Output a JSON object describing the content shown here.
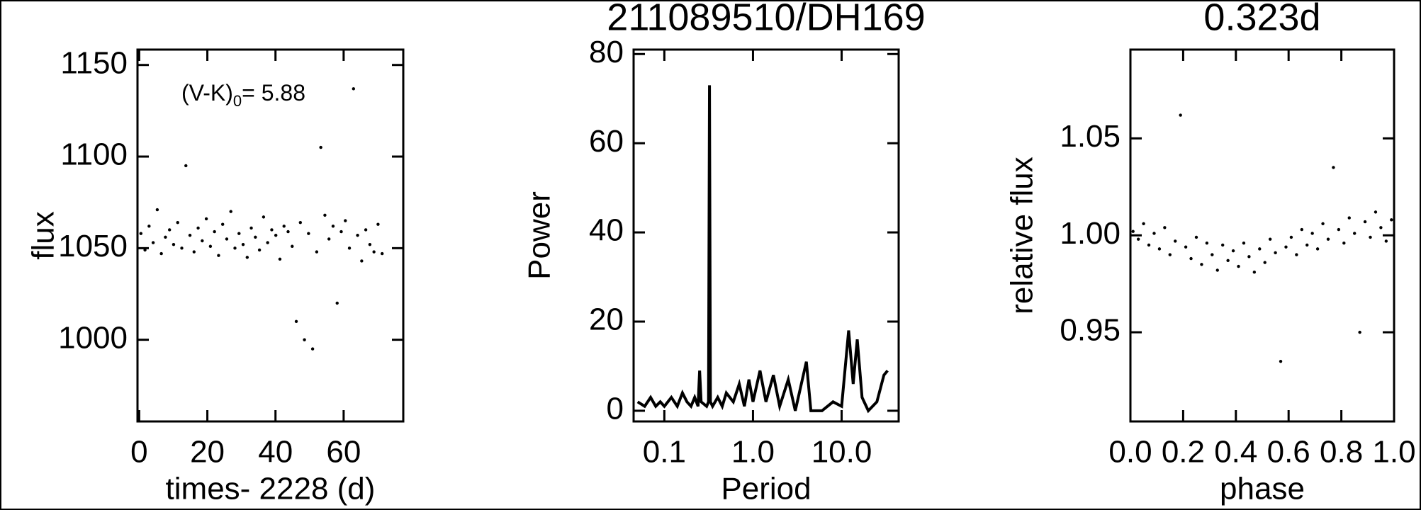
{
  "chart_data": [
    {
      "type": "scatter",
      "x_label": "times- 2228 (d)",
      "y_label": "flux",
      "color": "#000000",
      "annotation": {
        "main": "(V-K)",
        "sub": "0",
        "rest": "= 5.88"
      },
      "xlim": [
        -0.5,
        77.5
      ],
      "ylim": [
        955.4,
        1158.4
      ],
      "xticks": [
        0,
        20,
        40,
        60
      ],
      "yticks": [
        1000,
        1050,
        1100,
        1150
      ],
      "x": [
        0.5,
        1.7,
        2.9,
        4.1,
        5.3,
        6.5,
        7.7,
        8.9,
        10.1,
        11.3,
        12.5,
        13.7,
        14.9,
        16.1,
        17.3,
        18.5,
        19.7,
        20.9,
        22.1,
        23.3,
        24.5,
        25.7,
        26.9,
        28.1,
        29.3,
        30.5,
        31.7,
        32.9,
        34.1,
        35.3,
        36.5,
        37.7,
        38.9,
        40.1,
        41.3,
        42.5,
        43.7,
        44.9,
        46.1,
        47.3,
        48.5,
        49.7,
        50.9,
        52.1,
        53.3,
        54.5,
        55.7,
        56.9,
        58.1,
        59.3,
        60.5,
        61.7,
        62.9,
        64.1,
        65.3,
        66.5,
        67.7,
        68.9,
        70.1,
        71.3
      ],
      "values": [
        1058,
        1049,
        1062,
        1053,
        1071,
        1047,
        1056,
        1060,
        1052,
        1064,
        1050,
        1095,
        1057,
        1048,
        1061,
        1054,
        1066,
        1051,
        1059,
        1046,
        1063,
        1055,
        1070,
        1050,
        1058,
        1052,
        1045,
        1061,
        1056,
        1049,
        1067,
        1053,
        1060,
        1057,
        1044,
        1062,
        1059,
        1051,
        1010,
        1064,
        1000,
        1058,
        995,
        1048,
        1105,
        1068,
        1055,
        1062,
        1020,
        1059,
        1065,
        1050,
        1137,
        1057,
        1043,
        1060,
        1052,
        1048,
        1063,
        1047
      ]
    },
    {
      "type": "line",
      "title": "211089510/DH169",
      "x_label": "Period",
      "y_label": "Power",
      "color": "#000000",
      "xscale": "log",
      "xlim": [
        0.045,
        44
      ],
      "ylim": [
        -2.4,
        81
      ],
      "xticks": [
        0.1,
        {
          "value": 1,
          "label": "1.0"
        },
        {
          "value": 10,
          "label": "10.0"
        }
      ],
      "yticks": [
        0,
        20,
        40,
        60,
        80
      ],
      "x": [
        0.05,
        0.06,
        0.07,
        0.08,
        0.09,
        0.1,
        0.12,
        0.14,
        0.16,
        0.18,
        0.2,
        0.22,
        0.24,
        0.25,
        0.26,
        0.3,
        0.315,
        0.323,
        0.331,
        0.35,
        0.4,
        0.45,
        0.5,
        0.6,
        0.7,
        0.8,
        0.9,
        1.0,
        1.2,
        1.4,
        1.7,
        2.0,
        2.5,
        3.0,
        4.0,
        4.5,
        6,
        8,
        10,
        12,
        13.5,
        15,
        17,
        20,
        25,
        30,
        33
      ],
      "values": [
        2,
        1,
        3,
        1,
        2,
        1,
        3,
        1,
        4,
        2,
        1,
        3,
        1,
        9,
        2,
        1,
        2,
        73,
        2,
        1,
        3,
        1,
        4,
        2,
        6,
        1,
        7,
        2,
        9,
        2,
        8,
        1,
        7,
        0,
        11,
        0,
        0,
        2,
        1,
        18,
        6,
        16,
        3,
        0,
        2,
        8,
        9
      ]
    },
    {
      "type": "scatter",
      "title": "0.323d",
      "x_label": "phase",
      "y_label": "relative flux",
      "color": "#000000",
      "xlim": [
        0,
        1
      ],
      "ylim": [
        0.904,
        1.0958
      ],
      "xticks": [
        {
          "value": 0,
          "label": "0.0"
        },
        0.2,
        0.4,
        0.6,
        0.8,
        {
          "value": 1,
          "label": "1.0"
        }
      ],
      "yticks": [
        0.95,
        {
          "value": 1,
          "label": "1.00"
        },
        1.05
      ],
      "x": [
        0.01,
        0.03,
        0.05,
        0.07,
        0.09,
        0.11,
        0.13,
        0.15,
        0.17,
        0.19,
        0.21,
        0.23,
        0.25,
        0.27,
        0.29,
        0.31,
        0.33,
        0.35,
        0.37,
        0.39,
        0.41,
        0.43,
        0.45,
        0.47,
        0.49,
        0.51,
        0.53,
        0.55,
        0.57,
        0.59,
        0.61,
        0.63,
        0.65,
        0.67,
        0.69,
        0.71,
        0.73,
        0.75,
        0.77,
        0.79,
        0.81,
        0.83,
        0.85,
        0.87,
        0.89,
        0.91,
        0.93,
        0.95,
        0.97,
        0.99
      ],
      "values": [
        1.002,
        0.998,
        1.006,
        0.995,
        1.001,
        0.993,
        1.004,
        0.99,
        0.997,
        1.062,
        0.994,
        0.988,
        0.999,
        0.985,
        0.996,
        0.99,
        0.982,
        0.995,
        0.987,
        0.992,
        0.984,
        0.996,
        0.989,
        0.981,
        0.993,
        0.986,
        0.998,
        0.991,
        0.935,
        0.994,
        0.999,
        0.99,
        1.003,
        0.995,
        1.001,
        0.993,
        1.006,
        0.998,
        1.035,
        1.003,
        0.996,
        1.009,
        1.001,
        0.95,
        1.007,
        0.999,
        1.012,
        1.004,
        0.997,
        1.008
      ]
    }
  ]
}
